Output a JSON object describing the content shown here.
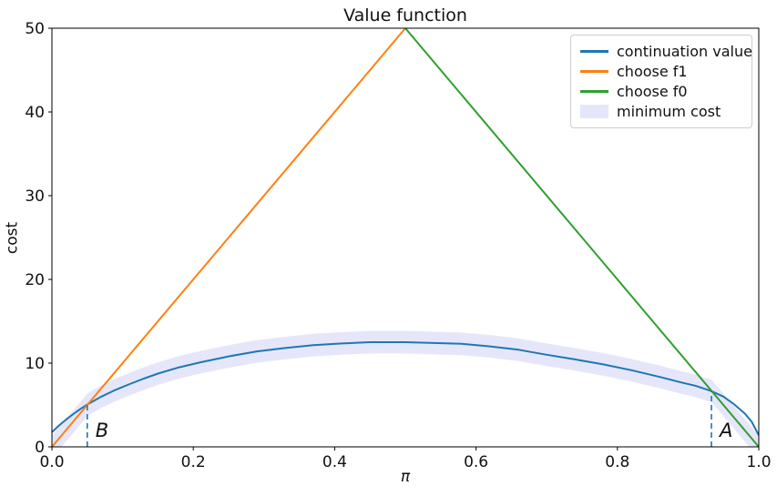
{
  "figure": {
    "title": "Value function",
    "background": "#ffffff"
  },
  "chart_data": {
    "type": "line",
    "title": "Value function",
    "xlabel": "π",
    "ylabel": "cost",
    "xlim": [
      0,
      1
    ],
    "ylim": [
      0,
      50
    ],
    "grid": false,
    "legend_position": "upper right",
    "xticks": {
      "values": [
        0,
        0.2,
        0.4,
        0.6,
        0.8,
        1.0
      ],
      "labels": [
        "0.0",
        "0.2",
        "0.4",
        "0.6",
        "0.8",
        "1.0"
      ]
    },
    "yticks": {
      "values": [
        0,
        10,
        20,
        30,
        40,
        50
      ],
      "labels": [
        "0",
        "10",
        "20",
        "30",
        "40",
        "50"
      ]
    },
    "series": [
      {
        "name": "continuation value",
        "color": "#1f77b4",
        "style": "solid",
        "points": [
          [
            0.0,
            1.75
          ],
          [
            0.01,
            2.55
          ],
          [
            0.02,
            3.25
          ],
          [
            0.03,
            3.9
          ],
          [
            0.04,
            4.5
          ],
          [
            0.05,
            5.05
          ],
          [
            0.07,
            6.0
          ],
          [
            0.09,
            6.8
          ],
          [
            0.11,
            7.5
          ],
          [
            0.13,
            8.15
          ],
          [
            0.15,
            8.75
          ],
          [
            0.18,
            9.5
          ],
          [
            0.21,
            10.1
          ],
          [
            0.25,
            10.8
          ],
          [
            0.29,
            11.4
          ],
          [
            0.33,
            11.8
          ],
          [
            0.37,
            12.15
          ],
          [
            0.41,
            12.35
          ],
          [
            0.45,
            12.5
          ],
          [
            0.5,
            12.5
          ],
          [
            0.54,
            12.4
          ],
          [
            0.58,
            12.3
          ],
          [
            0.62,
            12.0
          ],
          [
            0.66,
            11.6
          ],
          [
            0.7,
            11.0
          ],
          [
            0.74,
            10.45
          ],
          [
            0.78,
            9.85
          ],
          [
            0.82,
            9.15
          ],
          [
            0.86,
            8.35
          ],
          [
            0.89,
            7.7
          ],
          [
            0.91,
            7.3
          ],
          [
            0.932,
            6.7
          ],
          [
            0.95,
            6.0
          ],
          [
            0.965,
            5.1
          ],
          [
            0.98,
            4.0
          ],
          [
            0.99,
            3.0
          ],
          [
            1.0,
            1.4
          ]
        ]
      },
      {
        "name": "choose f1",
        "color": "#ff7f0e",
        "style": "solid",
        "points": [
          [
            0,
            0
          ],
          [
            0.5,
            50
          ]
        ]
      },
      {
        "name": "choose f0",
        "color": "#2ca02c",
        "style": "solid",
        "points": [
          [
            0.5,
            50
          ],
          [
            1,
            0
          ]
        ]
      }
    ],
    "band": {
      "name": "minimum cost",
      "color": "#e6e6fa",
      "half_width": 1.35,
      "follows": "minimum of the three series"
    },
    "annotations": [
      {
        "label": "B",
        "x": 0.05,
        "y_top": 5.05
      },
      {
        "label": "A",
        "x": 0.933,
        "y_top": 6.7
      }
    ],
    "annotation_line_color": "#1f77b4",
    "annotation_line_style": "dashed"
  },
  "legend": {
    "items": [
      {
        "label": "continuation value",
        "color": "#1f77b4",
        "swatch": "line"
      },
      {
        "label": "choose f1",
        "color": "#ff7f0e",
        "swatch": "line"
      },
      {
        "label": "choose f0",
        "color": "#2ca02c",
        "swatch": "line"
      },
      {
        "label": "minimum cost",
        "color": "#e6e6fa",
        "swatch": "patch"
      }
    ]
  }
}
